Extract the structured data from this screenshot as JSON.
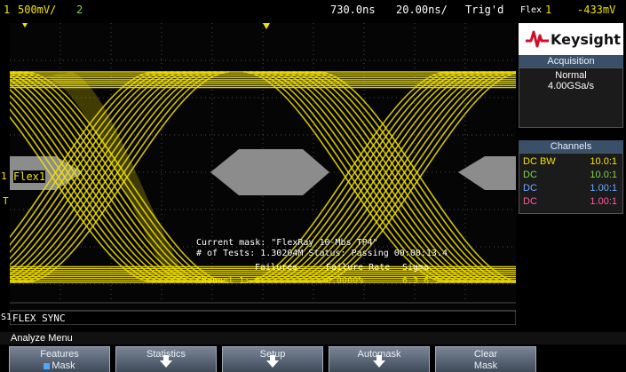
{
  "topbar": {
    "channel": "1",
    "vscale": "500mV/",
    "channel2": "2",
    "time_pos": "730.0ns",
    "time_scale": "20.00ns/",
    "trigger": "Trig'd",
    "trig_src": "Flex",
    "trig_ch": "1",
    "trig_level": "-433mV"
  },
  "screen": {
    "ref_marker": "1",
    "ch_label": "Flex1",
    "trig_marker": "T",
    "bus_num": "S1",
    "bus_label": "FLEX SYNC",
    "mask_line": "Current mask: \"FlexRay 10-Mbs TP4\"",
    "tests_line": "# of Tests: 1.30204M  Status: Passing  00:00:13.4",
    "col_failures": "Failures",
    "col_rate": "Failure Rate",
    "col_sigma": "Sigma",
    "row_channel": "Channel 1:",
    "row_failures": "0",
    "row_rate": "0.0000%",
    "row_sigma": "6.3 6.3"
  },
  "brand": {
    "name": "Keysight"
  },
  "acquisition": {
    "title": "Acquisition",
    "mode": "Normal",
    "rate": "4.00GSa/s"
  },
  "channels": {
    "title": "Channels",
    "rows": [
      {
        "coupling": "DC BW",
        "ratio": "10.0:1",
        "color": "#f4e300"
      },
      {
        "coupling": "DC",
        "ratio": "10.0:1",
        "color": "#7fd64a"
      },
      {
        "coupling": "DC",
        "ratio": "1.00:1",
        "color": "#6fa8ff"
      },
      {
        "coupling": "DC",
        "ratio": "1.00:1",
        "color": "#ff5aa0"
      }
    ]
  },
  "menu": {
    "title": "Analyze Menu",
    "keys": [
      {
        "label": "Features",
        "sub": "Mask"
      },
      {
        "label": "Statistics"
      },
      {
        "label": "Setup"
      },
      {
        "label": "Automask"
      },
      {
        "label": "Clear",
        "sub": "Mask"
      }
    ]
  },
  "colors": {
    "trace": "#f4e300",
    "mask": "#8c8c8c",
    "grid": "#4a4a4a",
    "panel_header": "#3a5069"
  }
}
